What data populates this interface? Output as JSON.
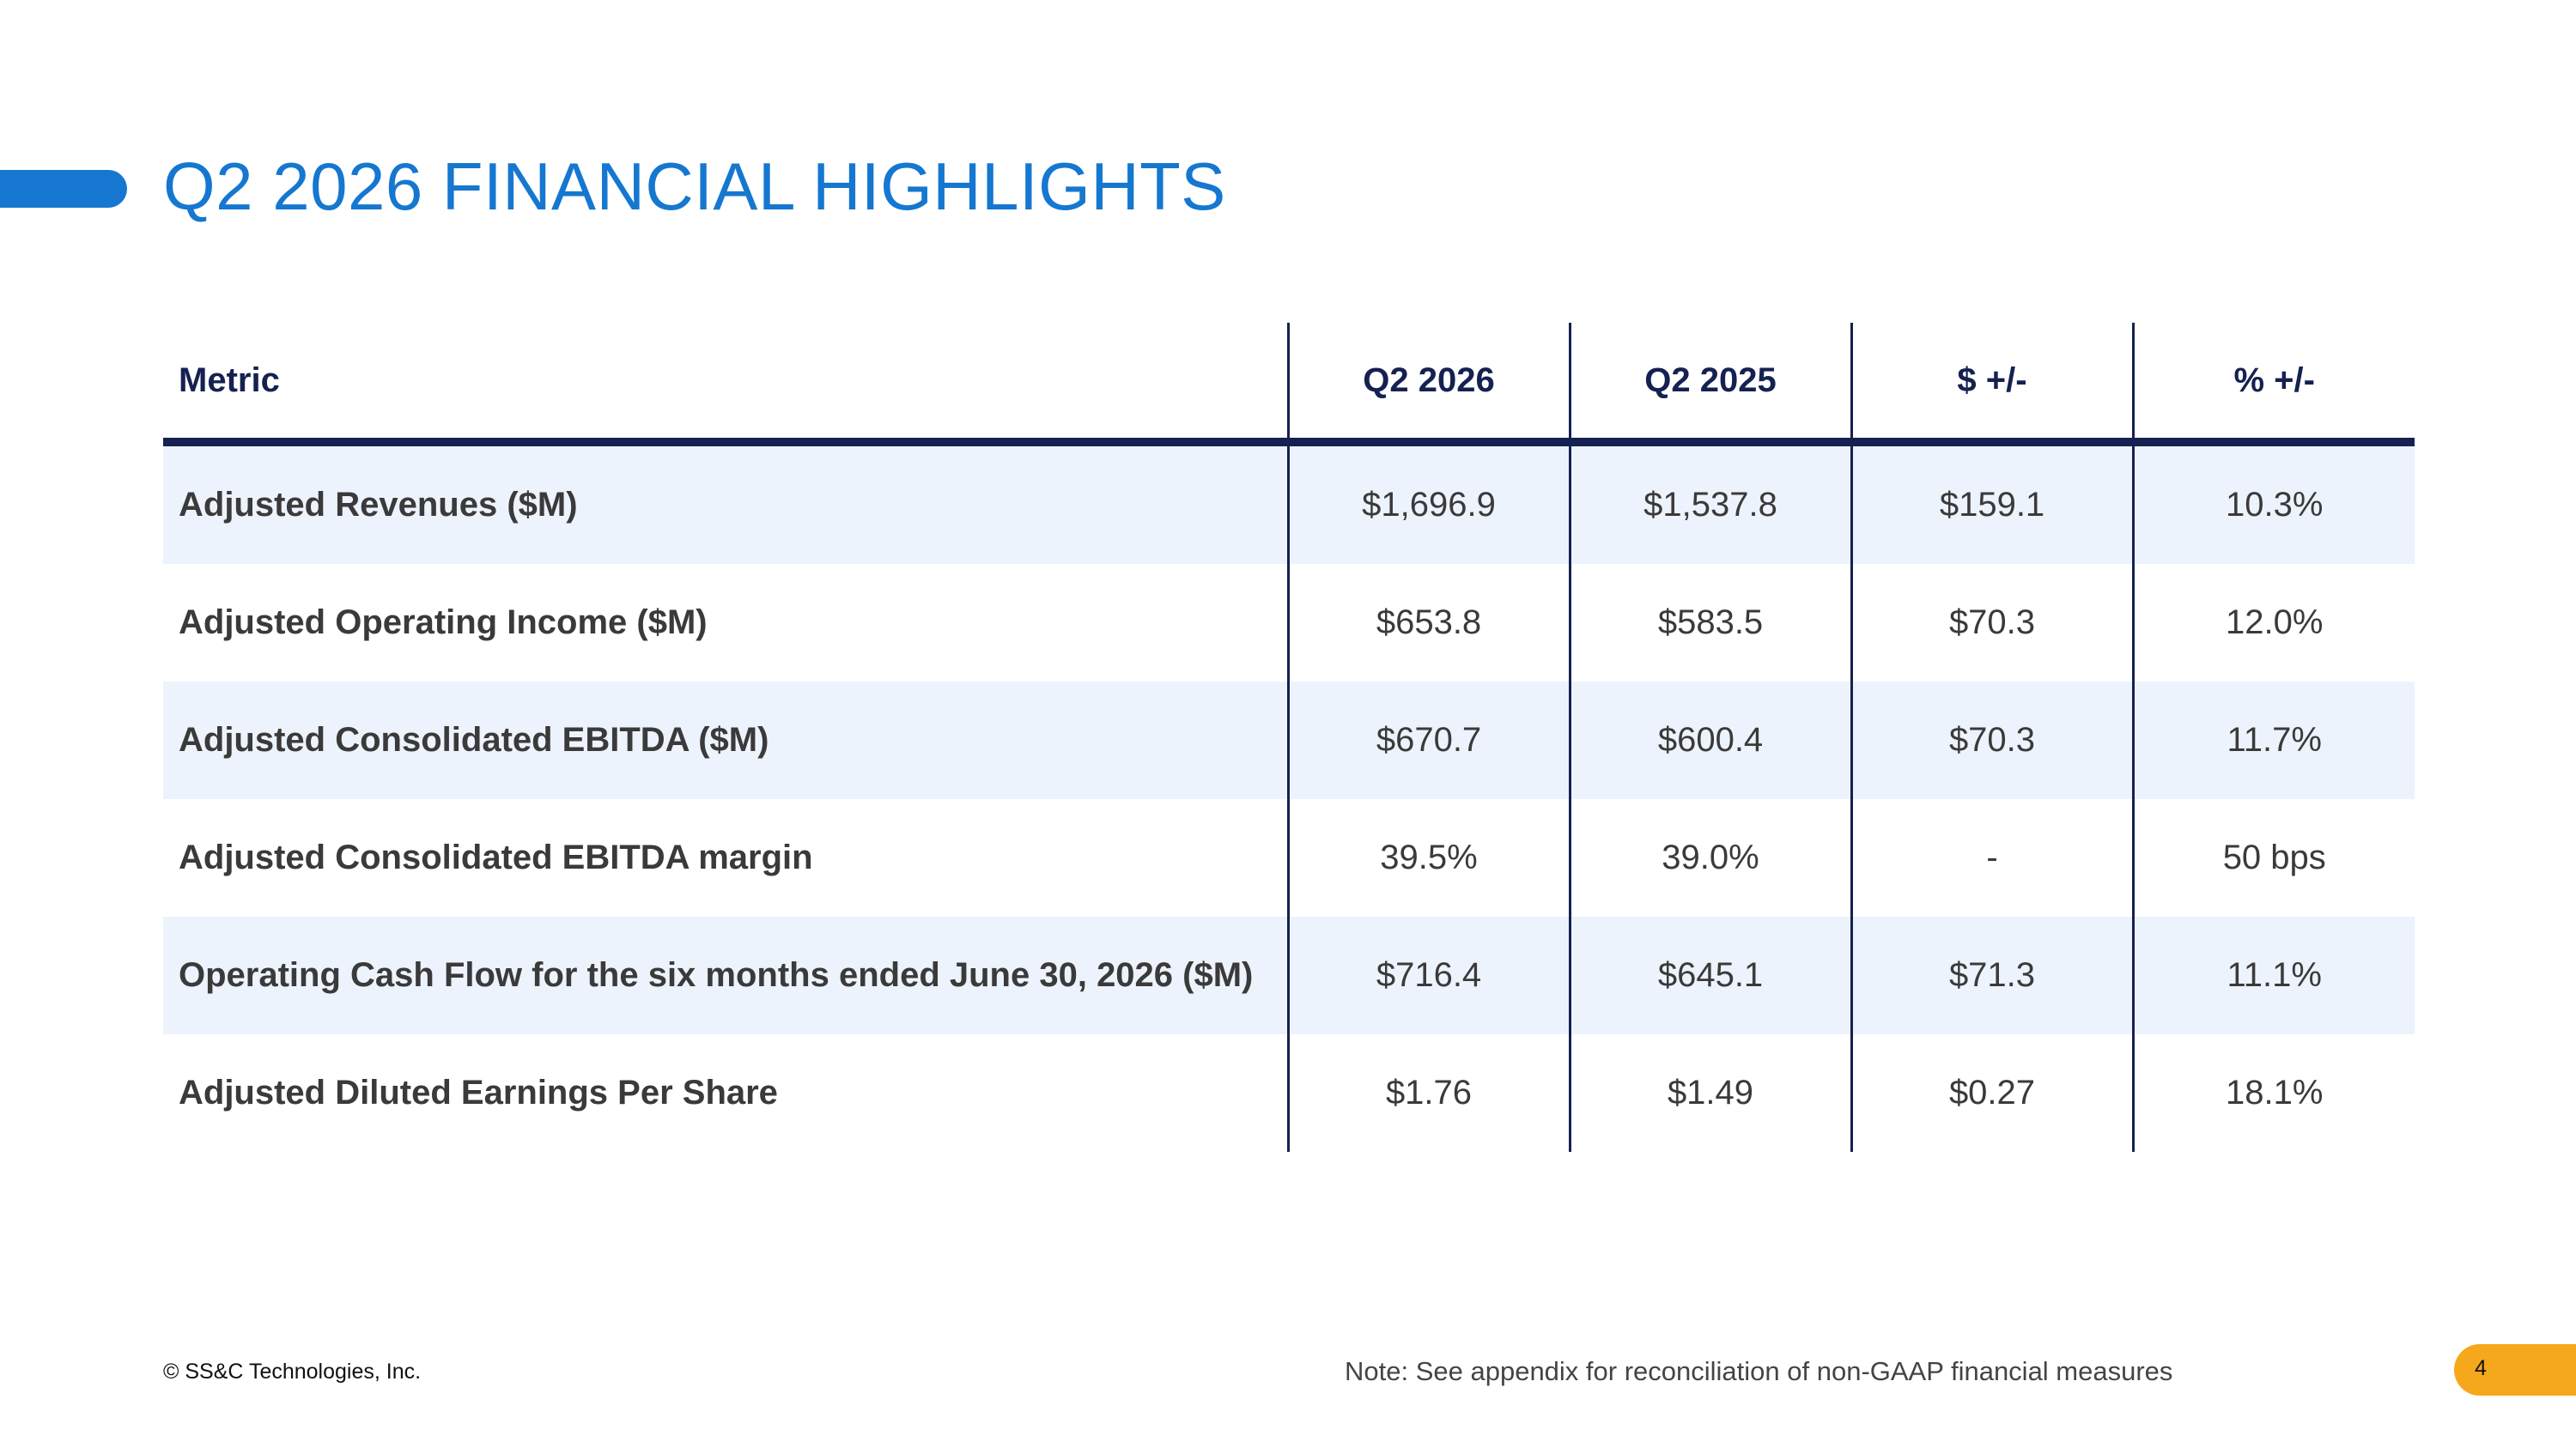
{
  "slide": {
    "title": "Q2 2026 FINANCIAL HIGHLIGHTS",
    "accent_color": "#1577d0",
    "copyright": "© SS&C Technologies, Inc.",
    "note": "Note: See appendix for reconciliation of non-GAAP financial measures",
    "page_number": "4",
    "page_badge_color": "#f5a81c"
  },
  "table": {
    "header_color": "#152151",
    "row_shade_color": "#edf3fc",
    "headers": [
      "Metric",
      "Q2 2026",
      "Q2 2025",
      "$ +/-",
      "% +/-"
    ],
    "rows": [
      [
        "Adjusted Revenues ($M)",
        "$1,696.9",
        "$1,537.8",
        "$159.1",
        "10.3%"
      ],
      [
        "Adjusted Operating Income ($M)",
        "$653.8",
        "$583.5",
        "$70.3",
        "12.0%"
      ],
      [
        "Adjusted Consolidated EBITDA ($M)",
        "$670.7",
        "$600.4",
        "$70.3",
        "11.7%"
      ],
      [
        "Adjusted Consolidated EBITDA margin",
        "39.5%",
        "39.0%",
        "-",
        "50 bps"
      ],
      [
        "Operating Cash Flow for the six months ended June 30, 2026 ($M)",
        "$716.4",
        "$645.1",
        "$71.3",
        "11.1%"
      ],
      [
        "Adjusted Diluted Earnings Per Share",
        "$1.76",
        "$1.49",
        "$0.27",
        "18.1%"
      ]
    ]
  }
}
